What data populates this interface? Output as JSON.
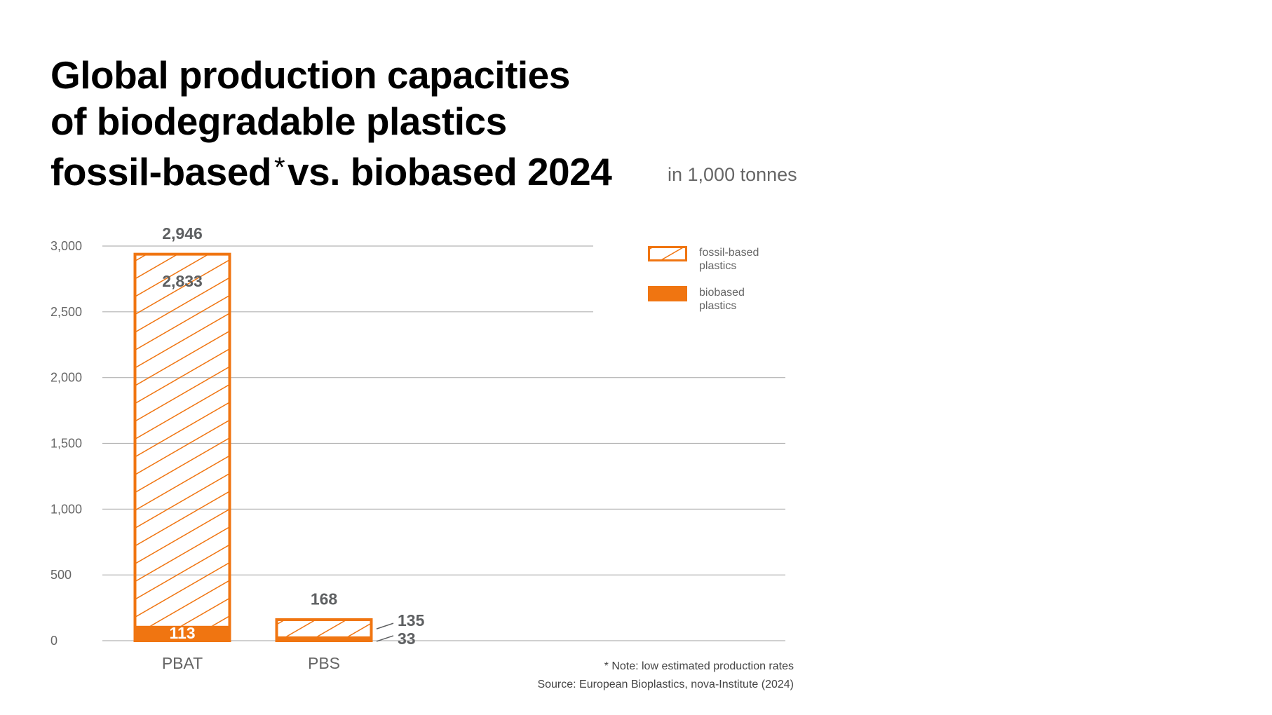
{
  "title": {
    "line1": "Global production capacities",
    "line2": "of biodegradable plastics",
    "line3a": "fossil-based",
    "star": "*",
    "line3b": "vs. biobased 2024",
    "unit": "in 1,000 tonnes"
  },
  "footer": {
    "note": "* Note: low estimated production rates",
    "source": "Source: European Bioplastics, nova-Institute (2024)"
  },
  "chart_data": {
    "type": "bar",
    "stacked": true,
    "categories": [
      "PBAT",
      "PBS"
    ],
    "series": [
      {
        "name": "biobased plastics",
        "values": [
          113,
          33
        ],
        "style": "solid"
      },
      {
        "name": "fossil-based plastics",
        "values": [
          2833,
          135
        ],
        "style": "hatched"
      }
    ],
    "totals": [
      2946,
      168
    ],
    "total_labels": [
      "2,946",
      "168"
    ],
    "segment_labels": {
      "PBAT": {
        "fossil": "2,833",
        "bio": "113"
      },
      "PBS": {
        "fossil": "135",
        "bio": "33"
      }
    },
    "y_ticks": [
      0,
      500,
      1000,
      1500,
      2000,
      2500,
      3000
    ],
    "y_tick_labels": [
      "0",
      "500",
      "1,000",
      "1,500",
      "2,000",
      "2,500",
      "3,000"
    ],
    "ylim": [
      0,
      3000
    ],
    "grid": true,
    "legend": {
      "position": "top-right",
      "entries": [
        {
          "line1": "fossil-based",
          "line2": "plastics",
          "style": "hatched"
        },
        {
          "line1": "biobased",
          "line2": "plastics",
          "style": "solid"
        }
      ]
    },
    "colors": {
      "accent": "#f07511",
      "grid": "#b3b3b3",
      "axis_text": "#666666",
      "value_text": "#5e6062",
      "inner_text": "#ffffff"
    }
  }
}
